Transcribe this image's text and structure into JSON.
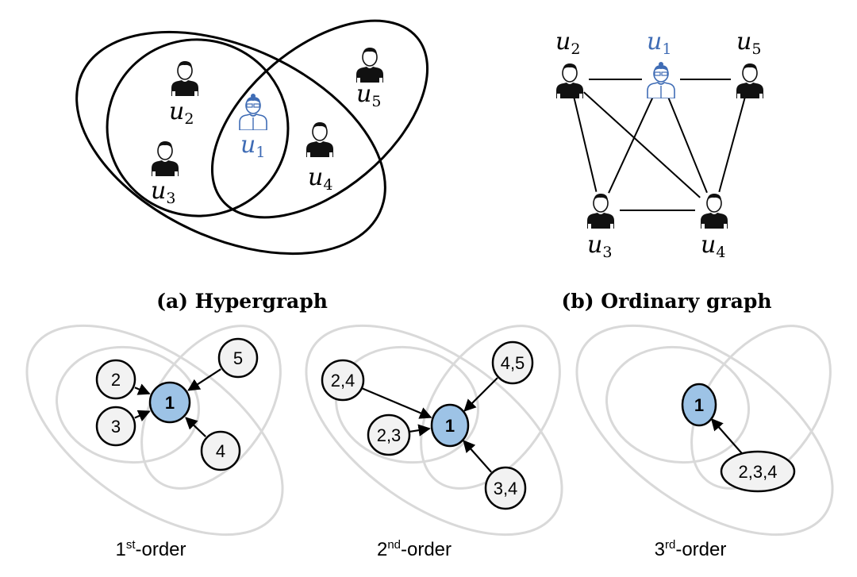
{
  "colors": {
    "highlight": "#3f6cb5",
    "center_node": "#9dc3e6",
    "other_node": "#f2f2f2",
    "hyperedge_gray": "#d9d9d9"
  },
  "users": {
    "u1": {
      "base": "u",
      "sub": "1"
    },
    "u2": {
      "base": "u",
      "sub": "2"
    },
    "u3": {
      "base": "u",
      "sub": "3"
    },
    "u4": {
      "base": "u",
      "sub": "4"
    },
    "u5": {
      "base": "u",
      "sub": "5"
    }
  },
  "captions": {
    "a": "(a) Hypergraph",
    "b": "(b) Ordinary graph"
  },
  "graph_edges": [
    [
      "u2",
      "u1"
    ],
    [
      "u1",
      "u5"
    ],
    [
      "u2",
      "u3"
    ],
    [
      "u2",
      "u4"
    ],
    [
      "u1",
      "u3"
    ],
    [
      "u1",
      "u4"
    ],
    [
      "u5",
      "u4"
    ],
    [
      "u3",
      "u4"
    ]
  ],
  "orders": [
    {
      "num": "1",
      "sup": "st",
      "suffix": "-order",
      "center": "1",
      "neighbors": [
        "2",
        "3",
        "5",
        "4"
      ]
    },
    {
      "num": "2",
      "sup": "nd",
      "suffix": "-order",
      "center": "1",
      "neighbors": [
        "2,4",
        "2,3",
        "4,5",
        "3,4"
      ]
    },
    {
      "num": "3",
      "sup": "rd",
      "suffix": "-order",
      "center": "1",
      "neighbors": [
        "2,3,4"
      ]
    }
  ]
}
